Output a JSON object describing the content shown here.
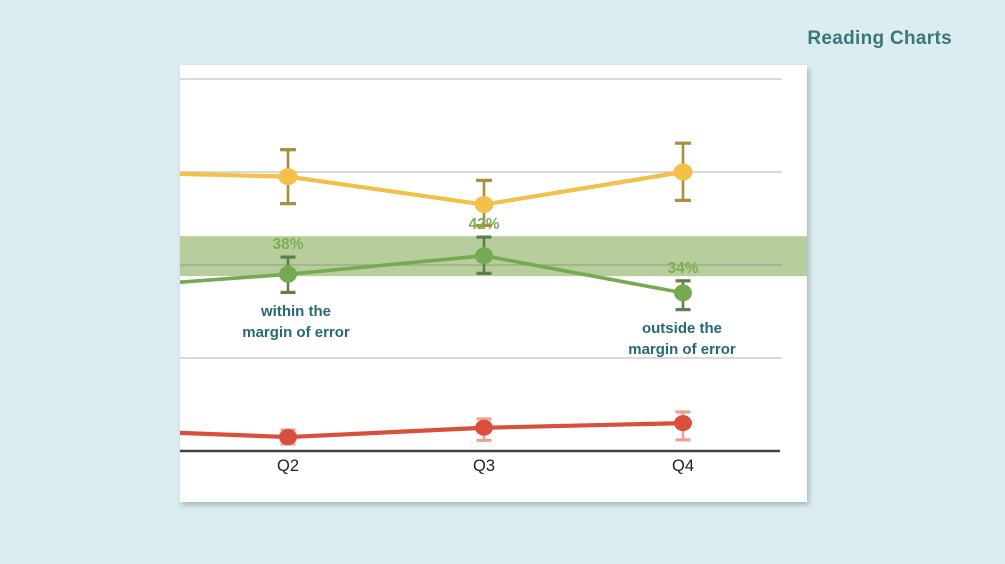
{
  "page": {
    "title": "Reading Charts",
    "title_color": "#37797a",
    "background": "#dcedf1"
  },
  "chart_data": {
    "type": "line",
    "title": "Reading Charts",
    "categories": [
      "Q2",
      "Q3",
      "Q4"
    ],
    "xlabel": "",
    "ylabel": "",
    "ylim": [
      0,
      84
    ],
    "grid": true,
    "gridline_values": [
      20,
      40,
      60,
      80
    ],
    "legend": "none",
    "band": {
      "name": "margin-of-error-band",
      "from": 37.6,
      "to": 46.2,
      "color": "#b7cd9b"
    },
    "series": [
      {
        "name": "yellow-series",
        "color": "#f2c04b",
        "error_color": "#ad8c3b",
        "edge_value": 59.6,
        "values": [
          59,
          53,
          60
        ],
        "err_hi": [
          64.8,
          58.2,
          66.2
        ],
        "err_lo": [
          53.2,
          48.5,
          53.9
        ]
      },
      {
        "name": "green-series",
        "color": "#74aa51",
        "error_color": "#5d7f4b",
        "label_color": "#7dac57",
        "edge_value": 36.3,
        "values": [
          38,
          42,
          34
        ],
        "labels": [
          "38%",
          "42%",
          "34%"
        ],
        "err_hi": [
          41.7,
          46.0,
          36.6
        ],
        "err_lo": [
          34.1,
          38.2,
          30.4
        ]
      },
      {
        "name": "red-series",
        "color": "#d94f3c",
        "error_color": "#efa096",
        "edge_value": 3.9,
        "values": [
          3,
          5,
          6
        ],
        "err_hi": [
          4.5,
          6.9,
          8.4
        ],
        "err_lo": [
          1.5,
          2.3,
          2.4
        ]
      }
    ],
    "annotations": [
      {
        "name": "within-margin",
        "text_lines": [
          "within the",
          "margin of error"
        ],
        "anchor": "Q2",
        "color": "#26696f"
      },
      {
        "name": "outside-margin",
        "text_lines": [
          "outside the",
          "margin of error"
        ],
        "anchor": "Q4",
        "color": "#26696f"
      }
    ]
  },
  "axis": {
    "line_color": "#434343",
    "grid_color": "#cccccc",
    "label_color": "#1e1e1e"
  }
}
